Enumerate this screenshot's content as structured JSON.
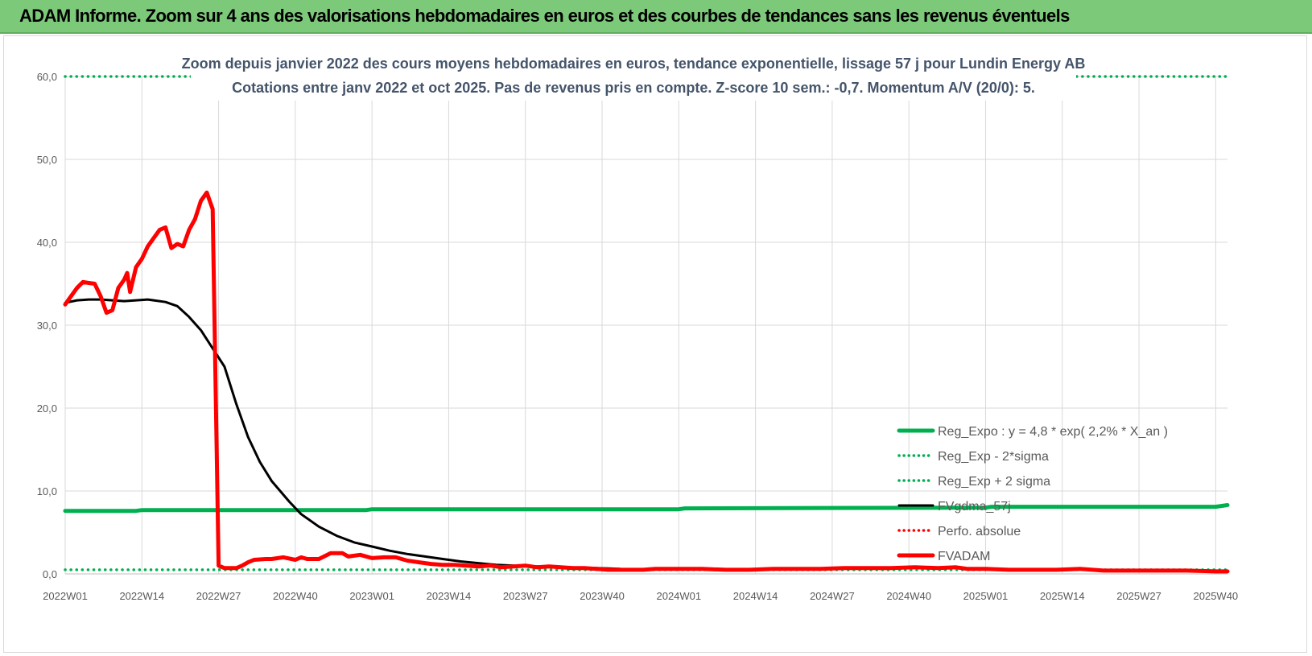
{
  "header": {
    "title": "ADAM Informe. Zoom sur 4 ans des valorisations hebdomadaires en euros et des courbes de tendances sans les revenus éventuels"
  },
  "colors": {
    "header_bg": "#7dc97a",
    "regression": "#00b050",
    "fvgdma": "#000000",
    "perfo": "#ff0000",
    "fvadam": "#ff0000",
    "title_text": "#44546a",
    "grid": "#d9d9d9"
  },
  "chart_data": {
    "type": "line",
    "title": "Zoom depuis janvier 2022 des cours moyens hebdomadaires en euros, tendance exponentielle, lissage 57 j pour Lundin Energy AB",
    "subtitle": "Cotations entre janv 2022 et oct 2025. Pas de revenus pris en compte. Z-score 10 sem.: -0,7.  Momentum A/V (20/0): 5.",
    "x_ticks": [
      "2022W01",
      "2022W14",
      "2022W27",
      "2022W40",
      "2023W01",
      "2023W14",
      "2023W27",
      "2023W40",
      "2024W01",
      "2024W14",
      "2024W27",
      "2024W40",
      "2025W01",
      "2025W14",
      "2025W27",
      "2025W40"
    ],
    "y_ticks": [
      "0,0",
      "10,0",
      "20,0",
      "30,0",
      "40,0",
      "50,0",
      "60,0"
    ],
    "ylim": [
      0,
      60
    ],
    "x_range_weeks": [
      0,
      197
    ],
    "grid": true,
    "legend_position": "bottom-right",
    "series": [
      {
        "name": "Reg_Expo : y = 4,8 * exp( 2,2% *  X_an )",
        "style": "solid-thick",
        "color": "#00b050",
        "points": [
          [
            0,
            7.6
          ],
          [
            12,
            7.6
          ],
          [
            13,
            7.7
          ],
          [
            51,
            7.7
          ],
          [
            52,
            7.8
          ],
          [
            104,
            7.8
          ],
          [
            105,
            7.9
          ],
          [
            156,
            8.0
          ],
          [
            157,
            8.1
          ],
          [
            195,
            8.1
          ],
          [
            197,
            8.3
          ]
        ]
      },
      {
        "name": "Reg_Exp - 2*sigma",
        "style": "dotted",
        "color": "#00b050",
        "points": [
          [
            0,
            0.5
          ],
          [
            197,
            0.5
          ]
        ]
      },
      {
        "name": "Reg_Exp + 2 sigma",
        "style": "dotted",
        "color": "#00b050",
        "points": [
          [
            0,
            60
          ],
          [
            197,
            60
          ]
        ]
      },
      {
        "name": "FVgdma_57j",
        "style": "solid",
        "color": "#000000",
        "points": [
          [
            0,
            32.7
          ],
          [
            2,
            33.0
          ],
          [
            4,
            33.1
          ],
          [
            6,
            33.1
          ],
          [
            8,
            33.0
          ],
          [
            10,
            32.9
          ],
          [
            12,
            33.0
          ],
          [
            14,
            33.1
          ],
          [
            15,
            33.0
          ],
          [
            17,
            32.8
          ],
          [
            19,
            32.3
          ],
          [
            21,
            31.0
          ],
          [
            23,
            29.4
          ],
          [
            25,
            27.2
          ],
          [
            27,
            25.0
          ],
          [
            29,
            20.5
          ],
          [
            31,
            16.5
          ],
          [
            33,
            13.5
          ],
          [
            35,
            11.2
          ],
          [
            38,
            8.7
          ],
          [
            40,
            7.2
          ],
          [
            43,
            5.7
          ],
          [
            46,
            4.6
          ],
          [
            49,
            3.8
          ],
          [
            52,
            3.3
          ],
          [
            55,
            2.8
          ],
          [
            58,
            2.4
          ],
          [
            61,
            2.1
          ],
          [
            64,
            1.8
          ],
          [
            67,
            1.5
          ],
          [
            70,
            1.3
          ],
          [
            73,
            1.1
          ],
          [
            76,
            1.0
          ],
          [
            80,
            0.9
          ],
          [
            85,
            0.8
          ],
          [
            90,
            0.7
          ],
          [
            94,
            0.6
          ]
        ]
      },
      {
        "name": "Perfo. absolue",
        "style": "dotted",
        "color": "#ff0000",
        "points": []
      },
      {
        "name": "FVADAM",
        "style": "solid-thick",
        "color": "#ff0000",
        "points": [
          [
            0,
            32.5
          ],
          [
            1,
            33.5
          ],
          [
            2,
            34.5
          ],
          [
            3,
            35.2
          ],
          [
            4,
            35.1
          ],
          [
            5,
            35.0
          ],
          [
            6,
            33.5
          ],
          [
            7,
            31.5
          ],
          [
            8,
            31.8
          ],
          [
            9,
            34.5
          ],
          [
            10,
            35.5
          ],
          [
            10.5,
            36.3
          ],
          [
            11,
            34.0
          ],
          [
            12,
            37.0
          ],
          [
            13,
            38.0
          ],
          [
            14,
            39.5
          ],
          [
            15,
            40.5
          ],
          [
            16,
            41.5
          ],
          [
            17,
            41.8
          ],
          [
            18,
            39.3
          ],
          [
            19,
            39.8
          ],
          [
            20,
            39.5
          ],
          [
            21,
            41.5
          ],
          [
            22,
            42.8
          ],
          [
            23,
            45.0
          ],
          [
            24,
            46.0
          ],
          [
            25,
            44.0
          ],
          [
            26,
            1.0
          ],
          [
            27,
            0.7
          ],
          [
            29,
            0.7
          ],
          [
            30,
            1.0
          ],
          [
            31,
            1.4
          ],
          [
            32,
            1.7
          ],
          [
            34,
            1.8
          ],
          [
            35,
            1.8
          ],
          [
            37,
            2.0
          ],
          [
            39,
            1.7
          ],
          [
            40,
            2.0
          ],
          [
            41,
            1.8
          ],
          [
            43,
            1.8
          ],
          [
            45,
            2.5
          ],
          [
            47,
            2.5
          ],
          [
            48,
            2.1
          ],
          [
            50,
            2.3
          ],
          [
            52,
            1.9
          ],
          [
            54,
            2.0
          ],
          [
            56,
            2.0
          ],
          [
            58,
            1.6
          ],
          [
            60,
            1.4
          ],
          [
            62,
            1.2
          ],
          [
            64,
            1.1
          ],
          [
            66,
            1.1
          ],
          [
            68,
            1.0
          ],
          [
            70,
            0.9
          ],
          [
            72,
            1.0
          ],
          [
            74,
            0.8
          ],
          [
            76,
            0.9
          ],
          [
            78,
            1.0
          ],
          [
            80,
            0.8
          ],
          [
            82,
            0.9
          ],
          [
            84,
            0.8
          ],
          [
            86,
            0.7
          ],
          [
            88,
            0.7
          ],
          [
            90,
            0.6
          ],
          [
            92,
            0.5
          ],
          [
            94,
            0.5
          ],
          [
            96,
            0.5
          ],
          [
            98,
            0.5
          ],
          [
            100,
            0.6
          ],
          [
            104,
            0.6
          ],
          [
            108,
            0.6
          ],
          [
            112,
            0.5
          ],
          [
            116,
            0.5
          ],
          [
            120,
            0.6
          ],
          [
            124,
            0.6
          ],
          [
            128,
            0.6
          ],
          [
            132,
            0.7
          ],
          [
            136,
            0.7
          ],
          [
            140,
            0.7
          ],
          [
            144,
            0.8
          ],
          [
            148,
            0.7
          ],
          [
            151,
            0.8
          ],
          [
            153,
            0.6
          ],
          [
            156,
            0.6
          ],
          [
            160,
            0.5
          ],
          [
            164,
            0.5
          ],
          [
            168,
            0.5
          ],
          [
            172,
            0.6
          ],
          [
            176,
            0.4
          ],
          [
            180,
            0.4
          ],
          [
            185,
            0.4
          ],
          [
            190,
            0.4
          ],
          [
            195,
            0.3
          ],
          [
            197,
            0.3
          ]
        ]
      }
    ]
  }
}
